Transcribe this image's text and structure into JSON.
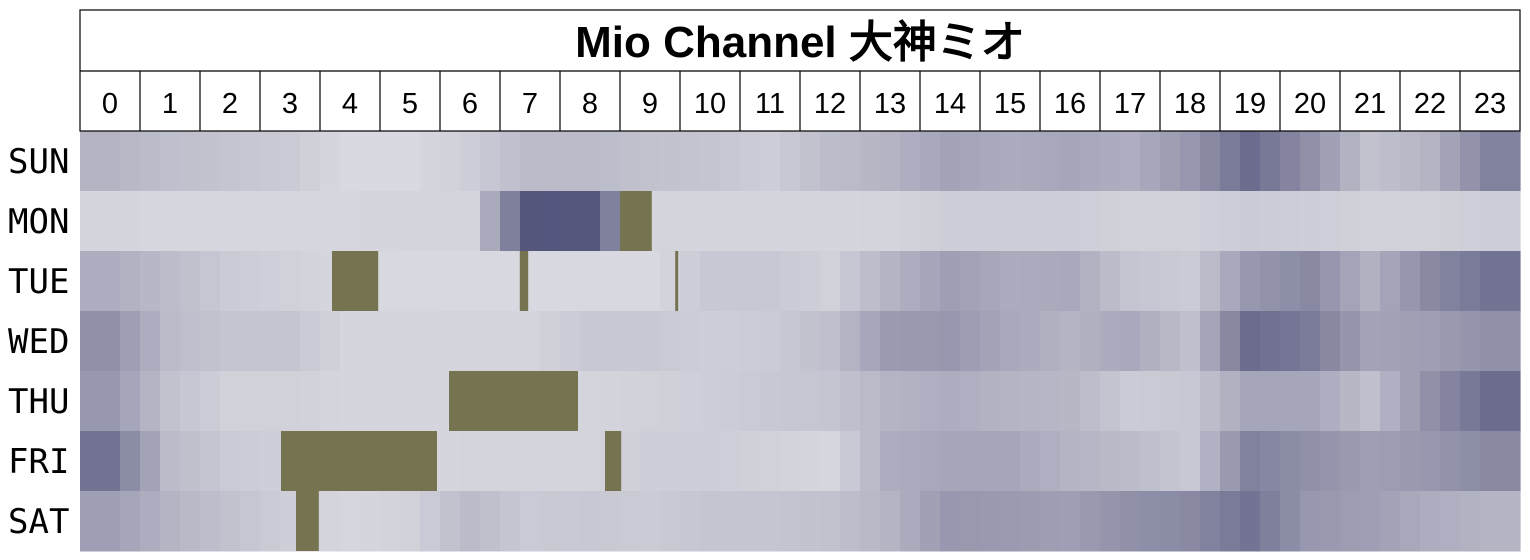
{
  "chart_data": {
    "type": "heatmap",
    "title": "Mio Channel 大神ミオ",
    "hours": [
      "0",
      "1",
      "2",
      "3",
      "4",
      "5",
      "6",
      "7",
      "8",
      "9",
      "10",
      "11",
      "12",
      "13",
      "14",
      "15",
      "16",
      "17",
      "18",
      "19",
      "20",
      "21",
      "22",
      "23"
    ],
    "days": [
      "SUN",
      "MON",
      "TUE",
      "WED",
      "THU",
      "FRI",
      "SAT"
    ],
    "value_scale": "0 = lightest, 1 = darkest (no numeric legend shown)",
    "colors": {
      "low": "#dfdfe5",
      "high": "#4f5078",
      "highlight": "#757350",
      "grid": "#000000"
    },
    "rows": {
      "SUN": [
        0.3,
        0.22,
        0.18,
        0.14,
        0.04,
        0.04,
        0.12,
        0.26,
        0.25,
        0.2,
        0.18,
        0.12,
        0.24,
        0.3,
        0.42,
        0.36,
        0.4,
        0.34,
        0.5,
        0.8,
        0.55,
        0.2,
        0.3,
        0.65
      ],
      "MON": [
        0.07,
        0.06,
        0.06,
        0.06,
        0.06,
        0.08,
        0.08,
        0.96,
        0.95,
        0.08,
        0.07,
        0.07,
        0.07,
        0.08,
        0.12,
        0.12,
        0.12,
        0.1,
        0.1,
        0.14,
        0.12,
        0.1,
        0.1,
        0.12
      ],
      "TUE": [
        0.35,
        0.24,
        0.14,
        0.1,
        0.05,
        0.05,
        0.05,
        0.05,
        0.05,
        0.05,
        0.16,
        0.16,
        0.1,
        0.3,
        0.45,
        0.36,
        0.38,
        0.18,
        0.14,
        0.5,
        0.6,
        0.32,
        0.6,
        0.75
      ],
      "WED": [
        0.55,
        0.25,
        0.18,
        0.18,
        0.07,
        0.07,
        0.08,
        0.08,
        0.16,
        0.16,
        0.12,
        0.14,
        0.22,
        0.48,
        0.5,
        0.38,
        0.3,
        0.38,
        0.22,
        0.8,
        0.7,
        0.42,
        0.45,
        0.55
      ],
      "THU": [
        0.5,
        0.2,
        0.1,
        0.1,
        0.07,
        0.07,
        0.07,
        0.07,
        0.08,
        0.1,
        0.12,
        0.16,
        0.18,
        0.3,
        0.35,
        0.3,
        0.28,
        0.14,
        0.16,
        0.4,
        0.4,
        0.22,
        0.55,
        0.8
      ],
      "FRI": [
        0.75,
        0.25,
        0.15,
        0.1,
        0.06,
        0.06,
        0.08,
        0.08,
        0.08,
        0.12,
        0.12,
        0.1,
        0.06,
        0.35,
        0.4,
        0.4,
        0.3,
        0.25,
        0.16,
        0.65,
        0.55,
        0.45,
        0.5,
        0.6
      ],
      "SAT": [
        0.45,
        0.3,
        0.2,
        0.12,
        0.06,
        0.1,
        0.25,
        0.15,
        0.16,
        0.14,
        0.18,
        0.18,
        0.2,
        0.3,
        0.5,
        0.48,
        0.45,
        0.55,
        0.6,
        0.75,
        0.5,
        0.45,
        0.35,
        0.3
      ]
    },
    "highlights": [
      {
        "day": "MON",
        "start": 9.0,
        "end": 9.53
      },
      {
        "day": "TUE",
        "start": 4.2,
        "end": 4.97
      },
      {
        "day": "TUE",
        "start": 7.33,
        "end": 7.47
      },
      {
        "day": "TUE",
        "start": 9.92,
        "end": 9.97
      },
      {
        "day": "THU",
        "start": 6.15,
        "end": 8.3
      },
      {
        "day": "FRI",
        "start": 3.35,
        "end": 5.95
      },
      {
        "day": "FRI",
        "start": 8.75,
        "end": 9.02
      },
      {
        "day": "SAT",
        "start": 3.6,
        "end": 3.98
      }
    ]
  }
}
